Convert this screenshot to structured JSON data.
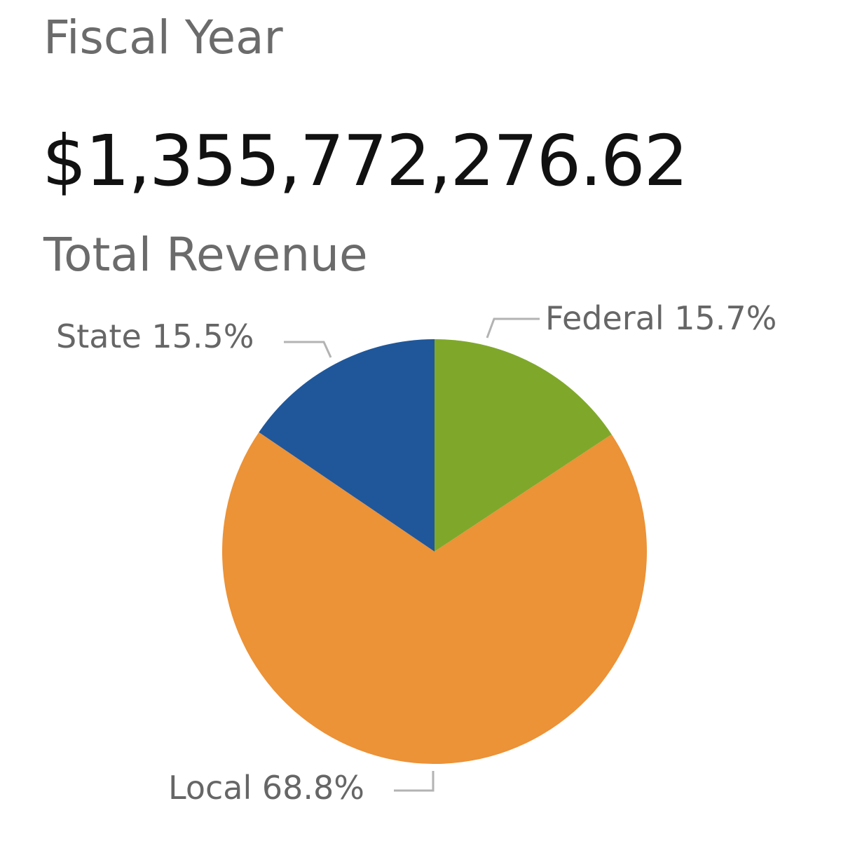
{
  "header": {
    "title": "Fiscal Year"
  },
  "kpi": {
    "value": "$1,355,772,276.62",
    "label": "Total Revenue"
  },
  "chart_data": {
    "type": "pie",
    "title": "",
    "categories": [
      "Federal",
      "Local",
      "State"
    ],
    "values": [
      15.7,
      68.8,
      15.5
    ],
    "unit": "%",
    "labels": [
      "Federal 15.7%",
      "Local 68.8%",
      "State 15.5%"
    ],
    "colors": [
      "#7fa82b",
      "#ec9237",
      "#20579a"
    ],
    "start_angle": "12 o'clock",
    "direction": "clockwise",
    "label_style": "outside with leader lines",
    "legend": "none"
  }
}
